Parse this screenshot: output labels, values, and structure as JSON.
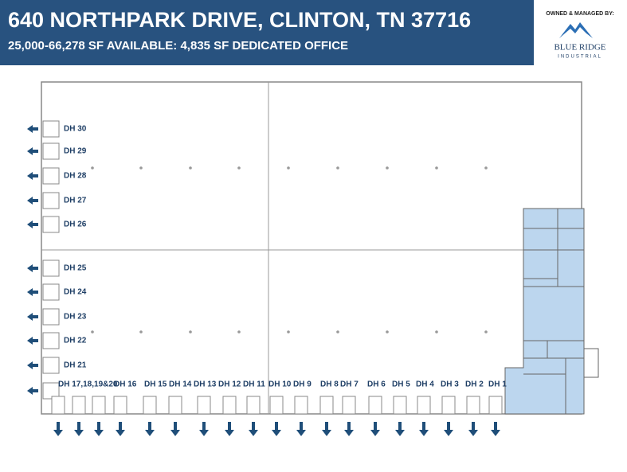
{
  "header": {
    "title": "640 NORTHPARK DRIVE, CLINTON, TN  37716",
    "subtitle": "25,000-66,278 SF AVAILABLE: 4,835 SF DEDICATED OFFICE"
  },
  "logo": {
    "caption": "OWNED & MANAGED BY:",
    "name": "BLUE RIDGE",
    "subname": "INDUSTRIAL"
  },
  "docks": {
    "left": [
      "DH 30",
      "DH 29",
      "DH 28",
      "DH 27",
      "DH 26",
      "DH 25",
      "DH 24",
      "DH 23",
      "DH 22",
      "DH 21"
    ],
    "bottom": [
      "DH 17,18,19&20",
      "DH 16",
      "DH 15",
      "DH 14",
      "DH 13",
      "DH 12",
      "DH 11",
      "DH 10",
      "DH 9",
      "DH 8",
      "DH 7",
      "DH 6",
      "DH 5",
      "DH 4",
      "DH 3",
      "DH 2",
      "DH 1"
    ]
  }
}
